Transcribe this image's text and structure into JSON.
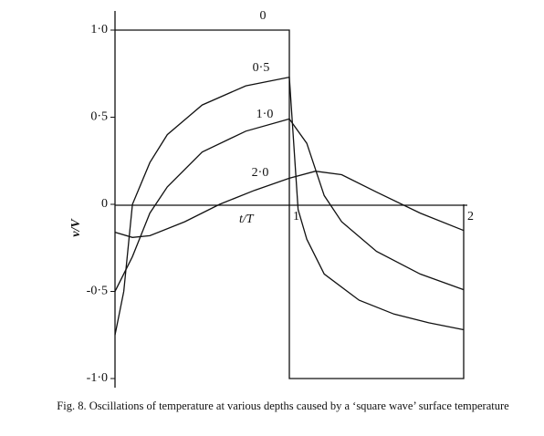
{
  "chart_data": {
    "type": "line",
    "caption": "Fig. 8. Oscillations of temperature at various depths caused by a ‘square wave’ surface temperature",
    "x_label": "t/T",
    "y_label": "v/V",
    "xlim": [
      0,
      2
    ],
    "ylim": [
      -1,
      1
    ],
    "xticks": [
      1,
      2
    ],
    "yticks": [
      {
        "value": 1,
        "label": "1·0"
      },
      {
        "value": 0.5,
        "label": "0·5"
      },
      0,
      {
        "value": -0.5,
        "label": "-0·5"
      },
      {
        "value": -1,
        "label": "-1·0"
      }
    ],
    "series": [
      {
        "name": "0",
        "color": "#111111",
        "x": [
          0,
          1,
          1,
          2,
          2
        ],
        "values": [
          1,
          1,
          -1,
          -1,
          0
        ]
      },
      {
        "name": "0·5",
        "color": "#111111",
        "x": [
          0,
          0.05,
          0.1,
          0.2,
          0.3,
          0.5,
          0.75,
          1,
          1.05,
          1.1,
          1.2,
          1.4,
          1.6,
          1.8,
          2
        ],
        "values": [
          -0.75,
          -0.5,
          0,
          0.24,
          0.4,
          0.57,
          0.68,
          0.73,
          -0.03,
          -0.2,
          -0.4,
          -0.55,
          -0.63,
          -0.68,
          -0.72
        ]
      },
      {
        "name": "1·0",
        "color": "#111111",
        "x": [
          0,
          0.1,
          0.2,
          0.3,
          0.5,
          0.75,
          1,
          1.1,
          1.2,
          1.3,
          1.5,
          1.75,
          2
        ],
        "values": [
          -0.5,
          -0.3,
          -0.05,
          0.1,
          0.3,
          0.42,
          0.49,
          0.35,
          0.05,
          -0.1,
          -0.27,
          -0.4,
          -0.49
        ]
      },
      {
        "name": "2·0",
        "color": "#111111",
        "x": [
          0,
          0.1,
          0.2,
          0.4,
          0.6,
          0.8,
          1,
          1.15,
          1.3,
          1.5,
          1.75,
          2
        ],
        "values": [
          -0.16,
          -0.19,
          -0.18,
          -0.1,
          0,
          0.08,
          0.15,
          0.19,
          0.17,
          0.07,
          -0.05,
          -0.15
        ]
      }
    ]
  }
}
